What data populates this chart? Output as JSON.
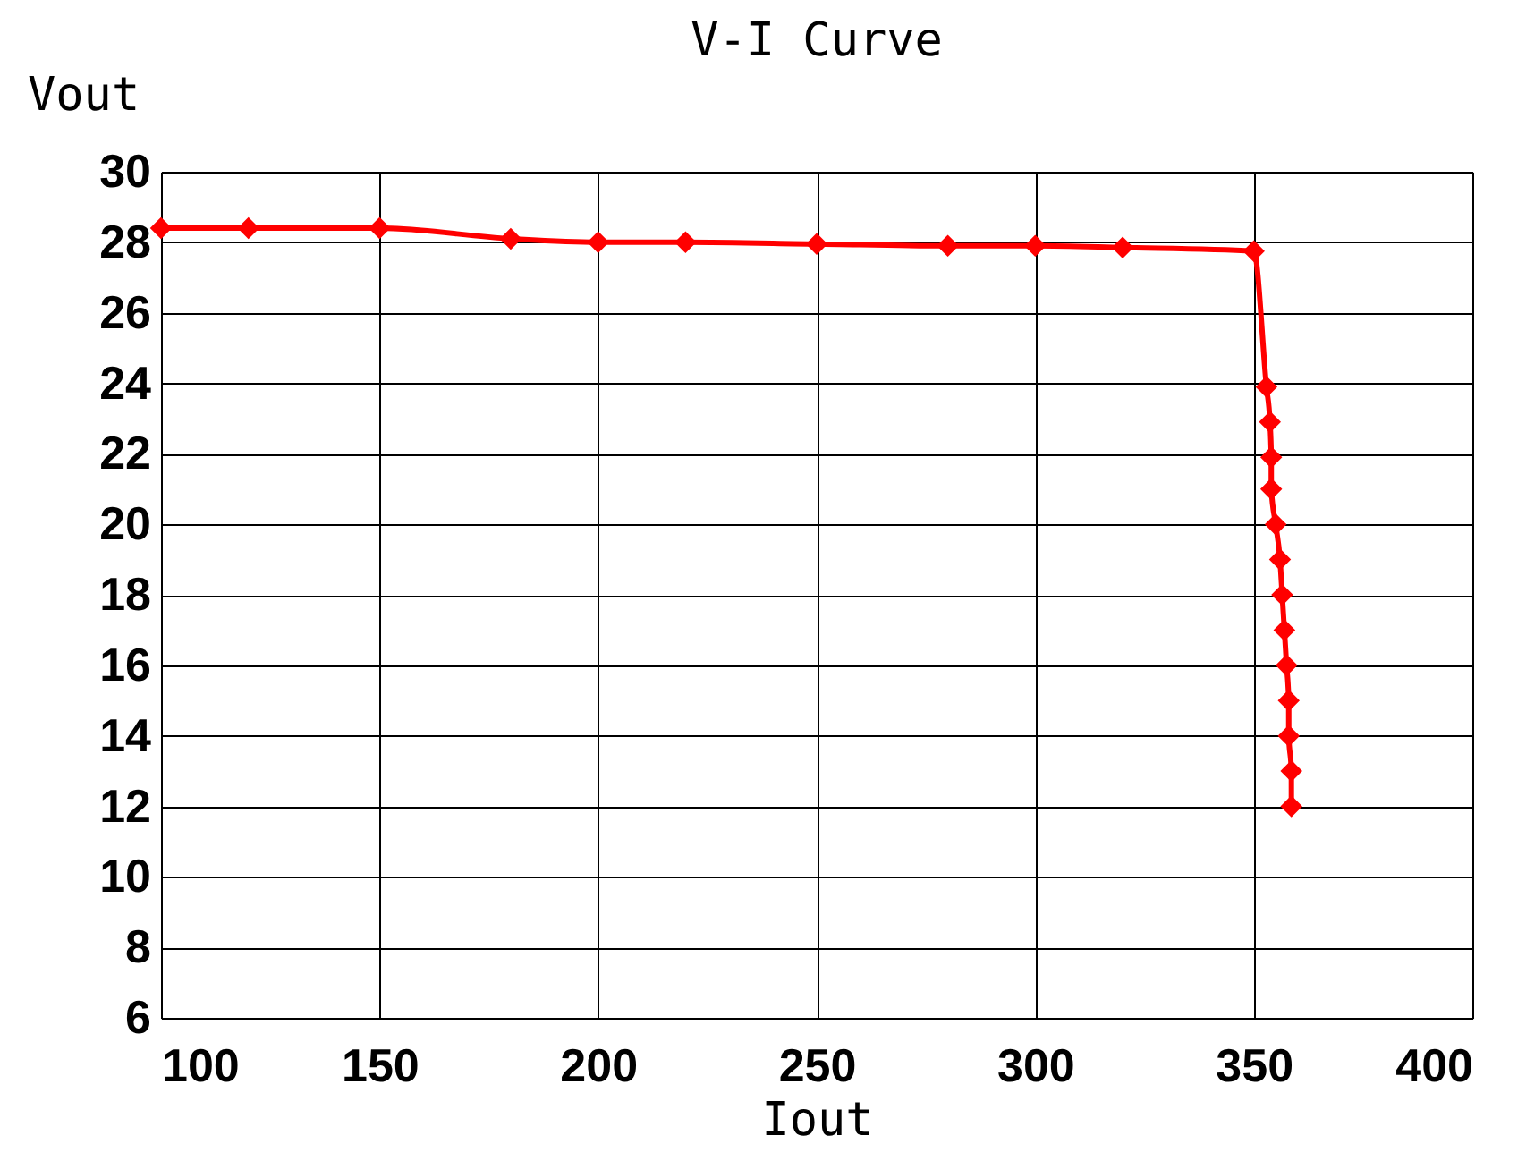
{
  "chart_data": {
    "type": "line",
    "title": "V-I Curve",
    "xlabel": "Iout",
    "ylabel": "Vout",
    "x": [
      100,
      120,
      150,
      180,
      200,
      220,
      250,
      280,
      300,
      320,
      350,
      352.9,
      353.7,
      354,
      354,
      355,
      356,
      356.5,
      357,
      357.5,
      358,
      358,
      358.6,
      358.6
    ],
    "series": [
      {
        "color": "#ff0000",
        "values": [
          28.4,
          28.4,
          28.4,
          28.1,
          28.0,
          28.0,
          27.95,
          27.9,
          27.9,
          27.85,
          27.75,
          23.9,
          22.9,
          21.9,
          21.0,
          20.0,
          19.0,
          18.0,
          17.0,
          16.0,
          15.0,
          14.0,
          13.0,
          12.0
        ]
      }
    ],
    "xlim": [
      100,
      400
    ],
    "xticks": [
      100,
      150,
      200,
      250,
      300,
      350,
      400
    ],
    "ylim": [
      6,
      30
    ],
    "yticks": [
      6,
      8,
      10,
      12,
      14,
      16,
      18,
      20,
      22,
      24,
      26,
      28,
      30
    ],
    "grid": true,
    "marker": "diamond",
    "line_style": "solid"
  }
}
